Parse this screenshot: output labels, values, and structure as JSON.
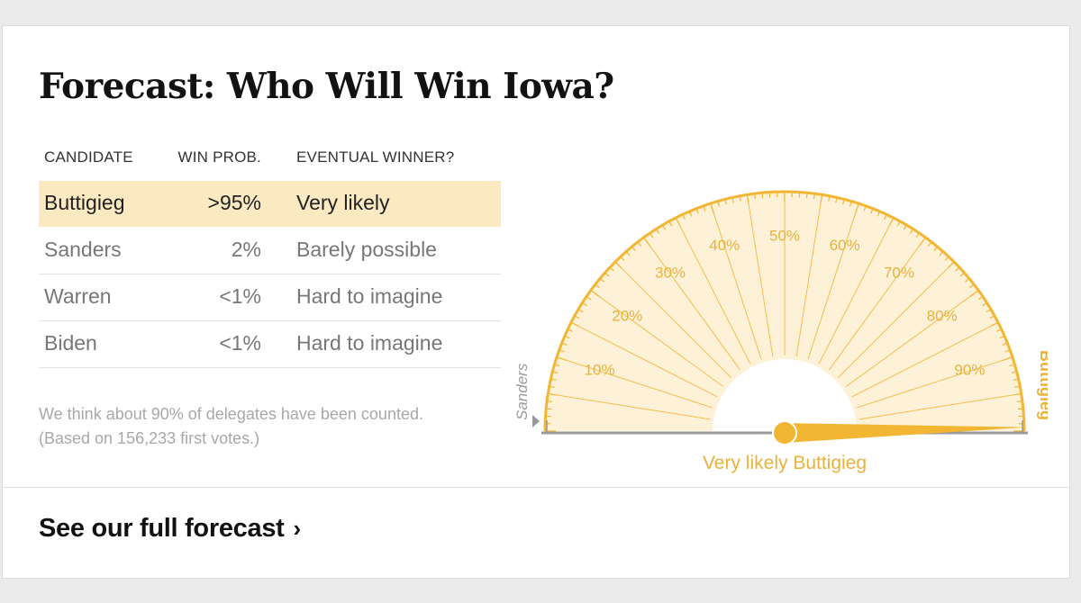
{
  "title": "Forecast: Who Will Win Iowa?",
  "table": {
    "headers": [
      "CANDIDATE",
      "WIN PROB.",
      "EVENTUAL WINNER?"
    ],
    "rows": [
      {
        "candidate": "Buttigieg",
        "prob": ">95%",
        "outlook": "Very likely"
      },
      {
        "candidate": "Sanders",
        "prob": "2%",
        "outlook": "Barely possible"
      },
      {
        "candidate": "Warren",
        "prob": "<1%",
        "outlook": "Hard to imagine"
      },
      {
        "candidate": "Biden",
        "prob": "<1%",
        "outlook": "Hard to imagine"
      }
    ]
  },
  "note": {
    "line1": "We think about 90% of delegates have been counted.",
    "line2": "(Based on 156,233 first votes.)"
  },
  "gauge": {
    "left_label": "Sanders",
    "right_label": "Buttigieg",
    "ticks": [
      "10%",
      "20%",
      "30%",
      "40%",
      "50%",
      "60%",
      "70%",
      "80%",
      "90%"
    ],
    "needle_value": 0.995,
    "caption": "Very likely Buttigieg",
    "colors": {
      "accent": "#f2b632",
      "fill": "#fdf1d8",
      "axis": "#999999",
      "text_accent": "#e8b23c"
    }
  },
  "cta": {
    "label": "See our full forecast",
    "chevron": "›"
  }
}
